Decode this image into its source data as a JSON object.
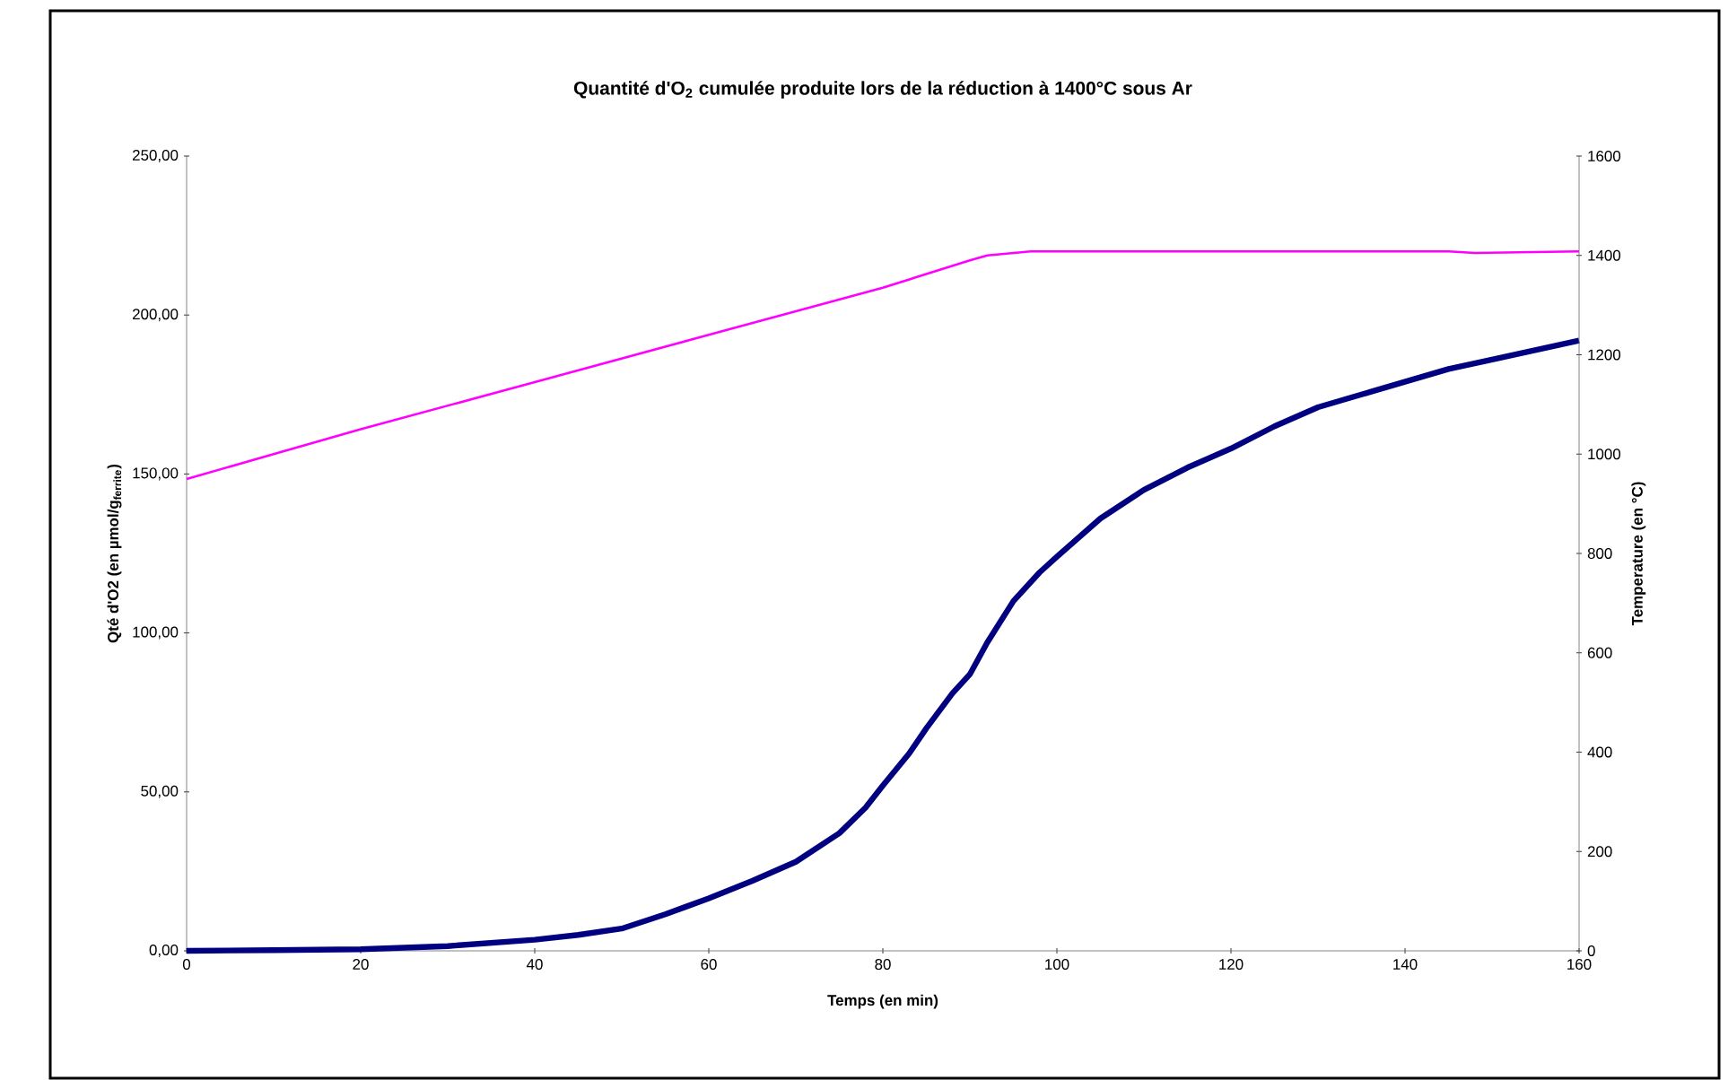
{
  "chart_data": {
    "type": "line",
    "title": "Quantité d'O$_{2}$ cumulée produite lors de la réduction à 1400°C sous Ar",
    "xlabel": "Temps (en min)",
    "ylabel": "Qté d'O2 (en µmol/g$_{ferrite}$)",
    "y2label": "Temperature (en °C)",
    "xlim": [
      0,
      160
    ],
    "xticks": [
      0,
      20,
      40,
      60,
      80,
      100,
      120,
      140,
      160
    ],
    "ylim": [
      0,
      250
    ],
    "yticks": [
      {
        "value": 0,
        "label": "0,00"
      },
      {
        "value": 50,
        "label": "50,00"
      },
      {
        "value": 100,
        "label": "100,00"
      },
      {
        "value": 150,
        "label": "150,00"
      },
      {
        "value": 200,
        "label": "200,00"
      },
      {
        "value": 250,
        "label": "250,00"
      }
    ],
    "y2lim": [
      0,
      1600
    ],
    "y2ticks": [
      0,
      200,
      400,
      600,
      800,
      1000,
      1200,
      1400,
      1600
    ],
    "grid": false,
    "legend": false,
    "marker": "none",
    "line_style": "solid",
    "series": [
      {
        "color": "#000080",
        "x": [
          0,
          10,
          20,
          30,
          40,
          45,
          50,
          55,
          60,
          65,
          70,
          75,
          78,
          80,
          83,
          85,
          88,
          90,
          92,
          95,
          98,
          100,
          105,
          110,
          115,
          120,
          125,
          130,
          135,
          140,
          145,
          150,
          155,
          160
        ],
        "values": [
          0,
          0.2,
          0.5,
          1.5,
          3.5,
          5,
          7,
          11.5,
          16.5,
          22,
          28,
          37,
          45,
          52,
          62,
          70,
          81,
          87,
          97,
          110,
          119,
          124,
          136,
          145,
          152,
          158,
          165,
          171,
          175,
          179,
          183,
          186,
          189,
          192
        ]
      },
      {
        "color": "#ff00ff",
        "axis": "y2",
        "x": [
          0,
          20,
          40,
          60,
          80,
          90,
          92,
          97,
          145,
          148,
          160
        ],
        "values": [
          950,
          1050,
          1145,
          1240,
          1335,
          1390,
          1400,
          1408,
          1408,
          1405,
          1408
        ]
      }
    ]
  }
}
